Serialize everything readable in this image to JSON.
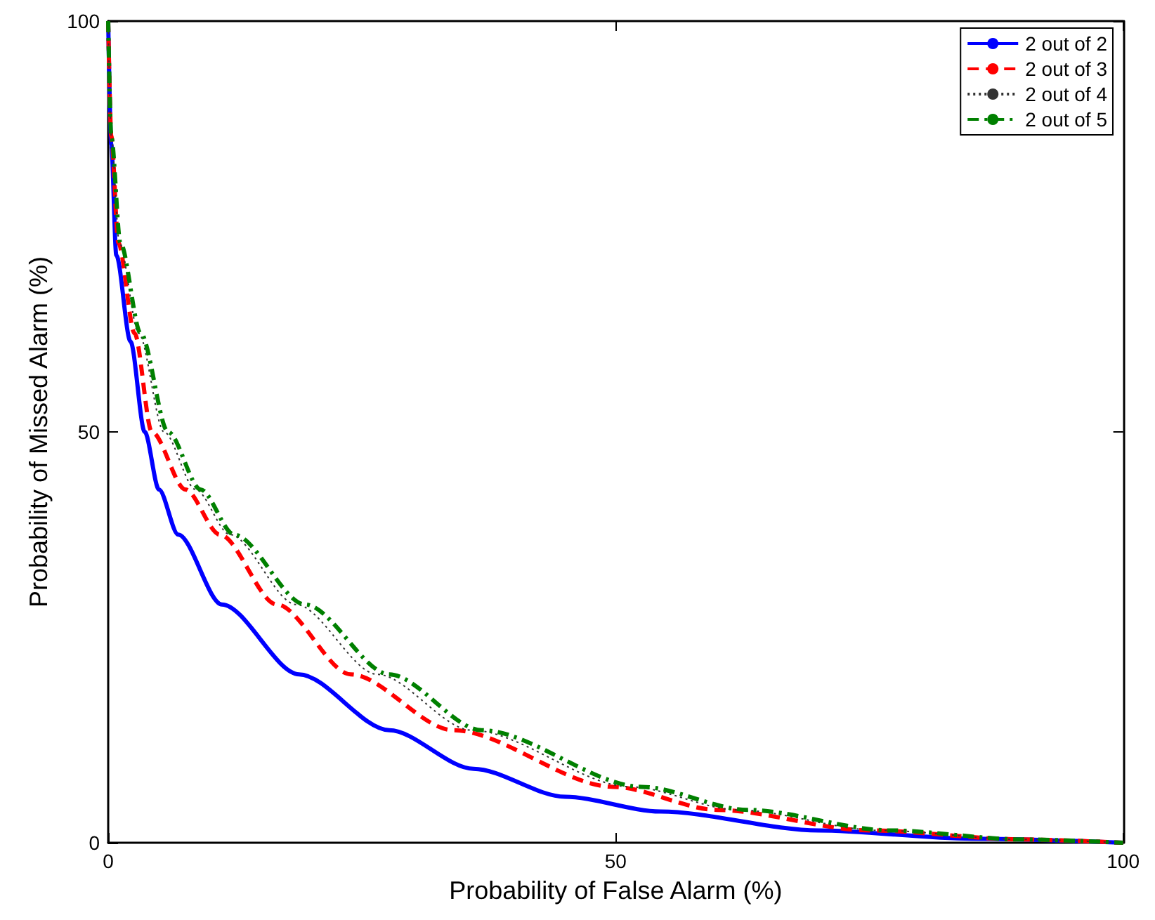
{
  "chart_data": {
    "type": "line",
    "xlabel": "Probability of False Alarm (%)",
    "ylabel": "Probability of Missed Alarm (%)",
    "xlim": [
      0,
      100
    ],
    "ylim": [
      0,
      100
    ],
    "xticks": [
      0,
      50,
      100
    ],
    "yticks": [
      0,
      50,
      100
    ],
    "grid": false,
    "legend": "top right",
    "marker": "none",
    "series": [
      {
        "name": "2 out of 2",
        "color": "#0000ff",
        "line_style": "solid",
        "x": [
          0,
          0.3,
          0.8,
          2.2,
          3.6,
          5,
          6.9,
          11.2,
          18.8,
          27.7,
          36,
          45,
          54.4,
          70,
          85,
          100
        ],
        "values": [
          100,
          85,
          71.5,
          61,
          50,
          43,
          37.5,
          29,
          20.5,
          13.7,
          9,
          5.6,
          3.8,
          1.5,
          0.5,
          0
        ]
      },
      {
        "name": "2 out of 3",
        "color": "#ff0000",
        "line_style": "dashed",
        "x": [
          0,
          0.3,
          1,
          2.6,
          4.3,
          7.6,
          11,
          16.6,
          23.9,
          34,
          49.8,
          60,
          75,
          90,
          100
        ],
        "values": [
          100,
          86,
          73,
          62,
          50,
          43,
          37.5,
          29,
          20.5,
          13.7,
          6.8,
          4,
          1.5,
          0.4,
          0
        ]
      },
      {
        "name": "2 out of 4",
        "color": "#333333",
        "line_style": "dotted",
        "x": [
          0,
          0.3,
          1.1,
          3,
          5.5,
          8.6,
          12,
          18.5,
          26.5,
          35.8,
          51.5,
          62,
          76,
          90,
          100
        ],
        "values": [
          100,
          86,
          73,
          62,
          50,
          43,
          37.5,
          29,
          20.5,
          13.7,
          6.8,
          4,
          1.5,
          0.4,
          0
        ]
      },
      {
        "name": "2 out of 5",
        "color": "#008000",
        "line_style": "dashdot",
        "x": [
          0,
          0.3,
          1.2,
          3.2,
          5.9,
          9.1,
          12.4,
          19.4,
          27.7,
          36.8,
          52.6,
          63,
          77,
          90,
          100
        ],
        "values": [
          100,
          86,
          73,
          62,
          50,
          43,
          37.5,
          29,
          20.5,
          13.7,
          6.8,
          4,
          1.5,
          0.4,
          0
        ]
      }
    ]
  }
}
